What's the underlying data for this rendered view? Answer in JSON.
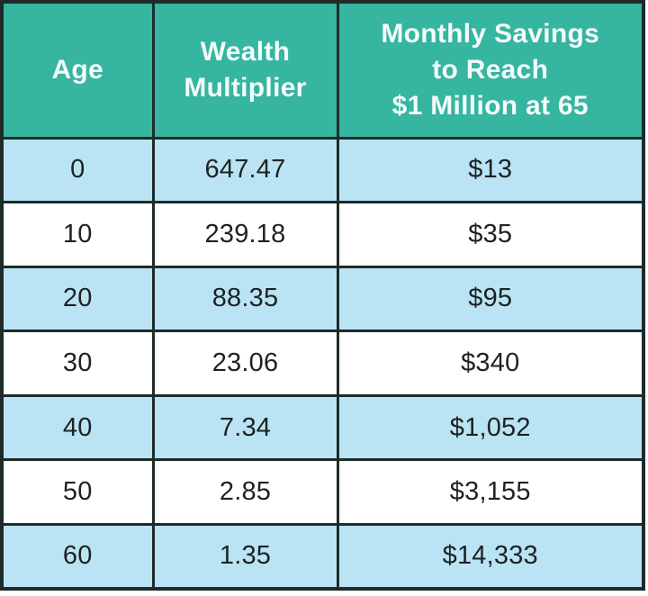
{
  "table": {
    "headers": {
      "age": {
        "label": "Age",
        "lines": [
          "Age"
        ]
      },
      "multiplier": {
        "label": "Wealth Multiplier",
        "lines": [
          "Wealth",
          "Multiplier"
        ]
      },
      "savings": {
        "label": "Monthly Savings to Reach $1 Million at 65",
        "lines": [
          "Monthly Savings",
          "to Reach",
          "$1 Million at 65"
        ]
      }
    },
    "rows": [
      {
        "age": "0",
        "multiplier": "647.47",
        "savings": "$13"
      },
      {
        "age": "10",
        "multiplier": "239.18",
        "savings": "$35"
      },
      {
        "age": "20",
        "multiplier": "88.35",
        "savings": "$95"
      },
      {
        "age": "30",
        "multiplier": "23.06",
        "savings": "$340"
      },
      {
        "age": "40",
        "multiplier": "7.34",
        "savings": "$1,052"
      },
      {
        "age": "50",
        "multiplier": "2.85",
        "savings": "$3,155"
      },
      {
        "age": "60",
        "multiplier": "1.35",
        "savings": "$14,333"
      }
    ]
  },
  "colors": {
    "header_bg": "#36b5a0",
    "header_text": "#f4fbfa",
    "row_alt_bg": "#bae4f4",
    "row_bg": "#ffffff",
    "border": "#1d2b29",
    "body_text": "#1e2223"
  },
  "chart_data": {
    "type": "table",
    "title": "",
    "columns": [
      "Age",
      "Wealth Multiplier",
      "Monthly Savings to Reach $1 Million at 65"
    ],
    "rows": [
      [
        0,
        647.47,
        "$13"
      ],
      [
        10,
        239.18,
        "$35"
      ],
      [
        20,
        88.35,
        "$95"
      ],
      [
        30,
        23.06,
        "$340"
      ],
      [
        40,
        7.34,
        "$1,052"
      ],
      [
        50,
        2.85,
        "$3,155"
      ],
      [
        60,
        1.35,
        "$14,333"
      ]
    ]
  }
}
